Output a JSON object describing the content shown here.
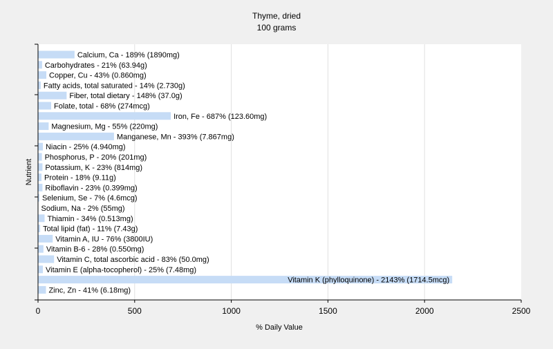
{
  "chart_data": {
    "type": "bar",
    "orientation": "horizontal",
    "title": "Thyme, dried",
    "subtitle": "100 grams",
    "xlabel": "% Daily Value",
    "ylabel": "Nutrient",
    "xlim": [
      0,
      2500
    ],
    "xticks": [
      0,
      500,
      1000,
      1500,
      2000,
      2500
    ],
    "grid": true,
    "colors": {
      "bar": "#c6dcf6",
      "plot_bg": "#ffffff",
      "grid": "#e0e0e0",
      "axis": "#000000"
    },
    "categories": [
      "Calcium, Ca",
      "Carbohydrates",
      "Copper, Cu",
      "Fatty acids, total saturated",
      "Fiber, total dietary",
      "Folate, total",
      "Iron, Fe",
      "Magnesium, Mg",
      "Manganese, Mn",
      "Niacin",
      "Phosphorus, P",
      "Potassium, K",
      "Protein",
      "Riboflavin",
      "Selenium, Se",
      "Sodium, Na",
      "Thiamin",
      "Total lipid (fat)",
      "Vitamin A, IU",
      "Vitamin B-6",
      "Vitamin C, total ascorbic acid",
      "Vitamin E (alpha-tocopherol)",
      "Vitamin K (phylloquinone)",
      "Zinc, Zn"
    ],
    "values": [
      189,
      21,
      43,
      14,
      148,
      68,
      687,
      55,
      393,
      25,
      20,
      23,
      18,
      23,
      7,
      2,
      34,
      11,
      76,
      28,
      83,
      25,
      2143,
      41
    ],
    "labels": [
      "Calcium, Ca - 189% (1890mg)",
      "Carbohydrates - 21% (63.94g)",
      "Copper, Cu - 43% (0.860mg)",
      "Fatty acids, total saturated - 14% (2.730g)",
      "Fiber, total dietary - 148% (37.0g)",
      "Folate, total - 68% (274mcg)",
      "Iron, Fe - 687% (123.60mg)",
      "Magnesium, Mg - 55% (220mg)",
      "Manganese, Mn - 393% (7.867mg)",
      "Niacin - 25% (4.940mg)",
      "Phosphorus, P - 20% (201mg)",
      "Potassium, K - 23% (814mg)",
      "Protein - 18% (9.11g)",
      "Riboflavin - 23% (0.399mg)",
      "Selenium, Se - 7% (4.6mcg)",
      "Sodium, Na - 2% (55mg)",
      "Thiamin - 34% (0.513mg)",
      "Total lipid (fat) - 11% (7.43g)",
      "Vitamin A, IU - 76% (3800IU)",
      "Vitamin B-6 - 28% (0.550mg)",
      "Vitamin C, total ascorbic acid - 83% (50.0mg)",
      "Vitamin E (alpha-tocopherol) - 25% (7.48mg)",
      "Vitamin K (phylloquinone) - 2143% (1714.5mcg)",
      "Zinc, Zn - 41% (6.18mg)"
    ]
  }
}
